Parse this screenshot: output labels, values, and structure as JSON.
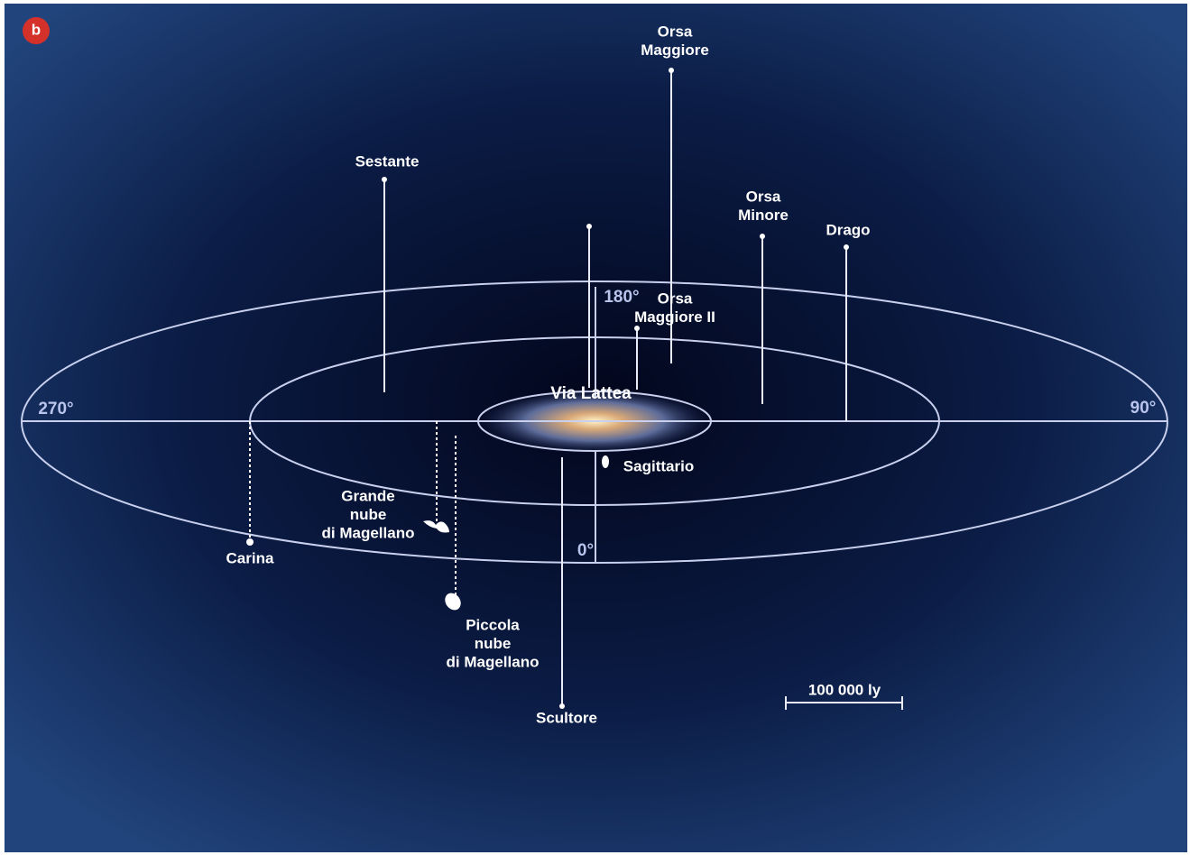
{
  "badge": "b",
  "angles": {
    "left": "270°",
    "right": "90°",
    "top": "180°",
    "bottom": "0°"
  },
  "center": "Via Lattea",
  "scale": "100 000 ly",
  "objects": [
    {
      "lines": [
        "Orsa",
        "Maggiore"
      ]
    },
    {
      "lines": [
        "Sestante"
      ]
    },
    {
      "lines": [
        "Orsa",
        "Minore"
      ]
    },
    {
      "lines": [
        "Drago"
      ]
    },
    {
      "lines": [
        "Orsa",
        "Maggiore II"
      ]
    },
    {
      "lines": [
        "Sagittario"
      ]
    },
    {
      "lines": [
        "Scultore"
      ]
    },
    {
      "lines": [
        "Carina"
      ]
    },
    {
      "lines": [
        "Grande",
        "nube",
        "di Magellano"
      ]
    },
    {
      "lines": [
        "Piccola",
        "nube",
        "di Magellano"
      ]
    }
  ]
}
